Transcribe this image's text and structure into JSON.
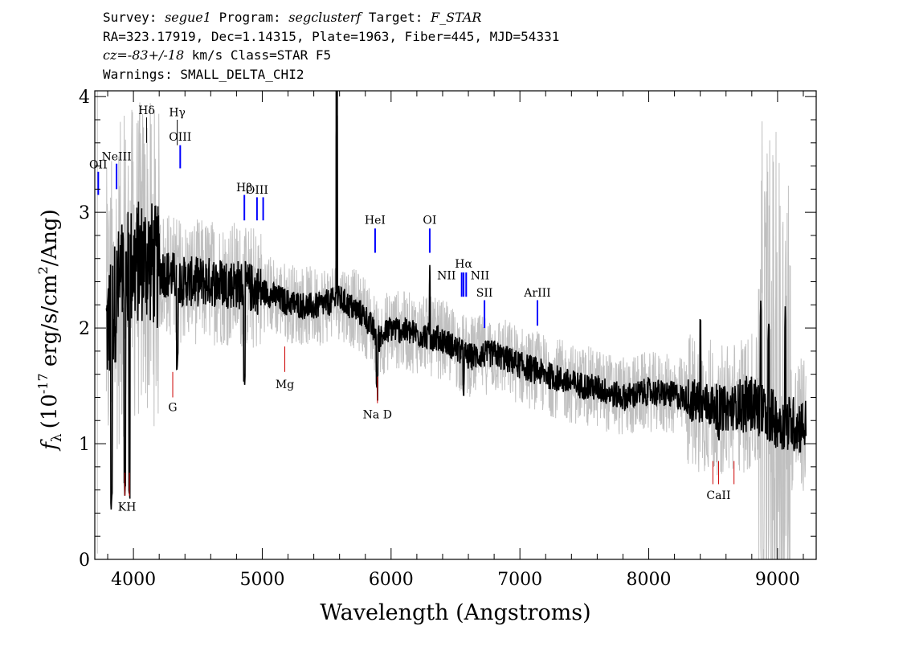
{
  "header": {
    "line1": {
      "survey_label": "Survey:",
      "survey": "segue1",
      "program_label": "Program:",
      "program": "segclusterf",
      "target_label": "Target:",
      "target": "F_STAR"
    },
    "line2": "RA=323.17919, Dec=1.14315, Plate=1963, Fiber=445, MJD=54331",
    "line3": {
      "cz_label": "cz=",
      "cz": "-83+/-18",
      "rest": " km/s Class=STAR F5"
    },
    "line4": "Warnings: SMALL_DELTA_CHI2"
  },
  "chart_data": {
    "type": "line",
    "xlabel": "Wavelength (Angstroms)",
    "ylabel_prefix": "f",
    "ylabel_sub": "λ",
    "ylabel_units": "(10",
    "ylabel_exp": "-17",
    "ylabel_rest": " erg/s/cm",
    "ylabel_exp2": "2",
    "ylabel_tail": "/Ang)",
    "xlim": [
      3700,
      9300
    ],
    "ylim": [
      0,
      4.05
    ],
    "xticks": [
      4000,
      5000,
      6000,
      7000,
      8000,
      9000
    ],
    "yticks": [
      0,
      1,
      2,
      3,
      4
    ],
    "colors": {
      "flux": "#000000",
      "error": "#c0c0c0",
      "emission": "#0000ff",
      "absorption": "#cc0000",
      "marker_label": "#000000"
    },
    "flux_knots": [
      [
        3800,
        2.0
      ],
      [
        3900,
        2.4
      ],
      [
        4000,
        2.55
      ],
      [
        4100,
        2.6
      ],
      [
        4200,
        2.5
      ],
      [
        4400,
        2.4
      ],
      [
        4600,
        2.4
      ],
      [
        4800,
        2.38
      ],
      [
        5000,
        2.32
      ],
      [
        5200,
        2.22
      ],
      [
        5400,
        2.18
      ],
      [
        5600,
        2.25
      ],
      [
        5800,
        2.1
      ],
      [
        5900,
        1.9
      ],
      [
        6000,
        2.0
      ],
      [
        6200,
        1.95
      ],
      [
        6400,
        1.9
      ],
      [
        6600,
        1.75
      ],
      [
        6800,
        1.78
      ],
      [
        7000,
        1.68
      ],
      [
        7200,
        1.6
      ],
      [
        7400,
        1.52
      ],
      [
        7600,
        1.48
      ],
      [
        7800,
        1.4
      ],
      [
        8000,
        1.45
      ],
      [
        8200,
        1.42
      ],
      [
        8400,
        1.35
      ],
      [
        8600,
        1.3
      ],
      [
        8800,
        1.35
      ],
      [
        9000,
        1.2
      ],
      [
        9200,
        1.15
      ]
    ],
    "spikes": [
      [
        3720,
        1.5
      ],
      [
        5578,
        4.05
      ],
      [
        6300,
        2.6
      ],
      [
        8400,
        2.1
      ],
      [
        8870,
        2.3
      ],
      [
        8930,
        2.1
      ],
      [
        9060,
        2.2
      ]
    ],
    "dips": [
      [
        3830,
        0.4
      ],
      [
        3934,
        0.5
      ],
      [
        3969,
        0.5
      ],
      [
        4340,
        1.6
      ],
      [
        4861,
        1.5
      ],
      [
        5890,
        1.35
      ],
      [
        6563,
        1.4
      ],
      [
        8542,
        1.0
      ]
    ],
    "lines": [
      {
        "label": "OII",
        "x": 3727,
        "kind": "emission",
        "y0": 3.15,
        "y1": 3.35,
        "ly": 3.38
      },
      {
        "label": "NeIII",
        "x": 3869,
        "kind": "emission",
        "y0": 3.2,
        "y1": 3.42,
        "ly": 3.45
      },
      {
        "label": "Hδ",
        "x": 4102,
        "kind": "marker",
        "y0": 3.6,
        "y1": 3.82,
        "ly": 3.85
      },
      {
        "label": "Hγ",
        "x": 4340,
        "kind": "marker",
        "y0": 3.58,
        "y1": 3.8,
        "ly": 3.83
      },
      {
        "label": "OIII",
        "x": 4363,
        "kind": "emission",
        "y0": 3.38,
        "y1": 3.58,
        "ly": 3.62
      },
      {
        "label": "Hβ",
        "x": 4861,
        "kind": "emission",
        "y0": 2.93,
        "y1": 3.15,
        "ly": 3.18
      },
      {
        "label": "OIII",
        "x": 4959,
        "kind": "emission",
        "y0": 2.93,
        "y1": 3.13,
        "ly": 3.16
      },
      {
        "label": "OIII",
        "x": 5007,
        "kind": "emission",
        "y0": 2.93,
        "y1": 3.13,
        "ly": -1
      },
      {
        "label": "HeI",
        "x": 5876,
        "kind": "emission",
        "y0": 2.65,
        "y1": 2.86,
        "ly": 2.9
      },
      {
        "label": "OI",
        "x": 6300,
        "kind": "emission",
        "y0": 2.65,
        "y1": 2.86,
        "ly": 2.9
      },
      {
        "label": "NII",
        "x": 6548,
        "kind": "emission",
        "y0": 2.27,
        "y1": 2.48,
        "ly": 2.42,
        "lx": 6430
      },
      {
        "label": "Hα",
        "x": 6563,
        "kind": "emission",
        "y0": 2.27,
        "y1": 2.48,
        "ly": 2.52
      },
      {
        "label": "NII",
        "x": 6583,
        "kind": "emission",
        "y0": 2.27,
        "y1": 2.48,
        "ly": 2.42,
        "lx": 6690
      },
      {
        "label": "SII",
        "x": 6725,
        "kind": "emission",
        "y0": 2.0,
        "y1": 2.24,
        "ly": 2.27
      },
      {
        "label": "ArIII",
        "x": 7136,
        "kind": "emission",
        "y0": 2.02,
        "y1": 2.24,
        "ly": 2.27
      },
      {
        "label": "KH",
        "x": 3950,
        "kind": "absorption",
        "y0": 0.55,
        "y1": 0.75,
        "ly": 0.42
      },
      {
        "label": "G",
        "x": 4305,
        "kind": "absorption",
        "y0": 1.4,
        "y1": 1.62,
        "ly": 1.28
      },
      {
        "label": "Mg",
        "x": 5175,
        "kind": "absorption",
        "y0": 1.62,
        "y1": 1.84,
        "ly": 1.48
      },
      {
        "label": "Na D",
        "x": 5894,
        "kind": "absorption",
        "y0": 1.35,
        "y1": 1.58,
        "ly": 1.22
      },
      {
        "label": "CaII",
        "x": 8542,
        "kind": "absorption",
        "y0": 0.65,
        "y1": 0.85,
        "ly": 0.52
      }
    ]
  }
}
